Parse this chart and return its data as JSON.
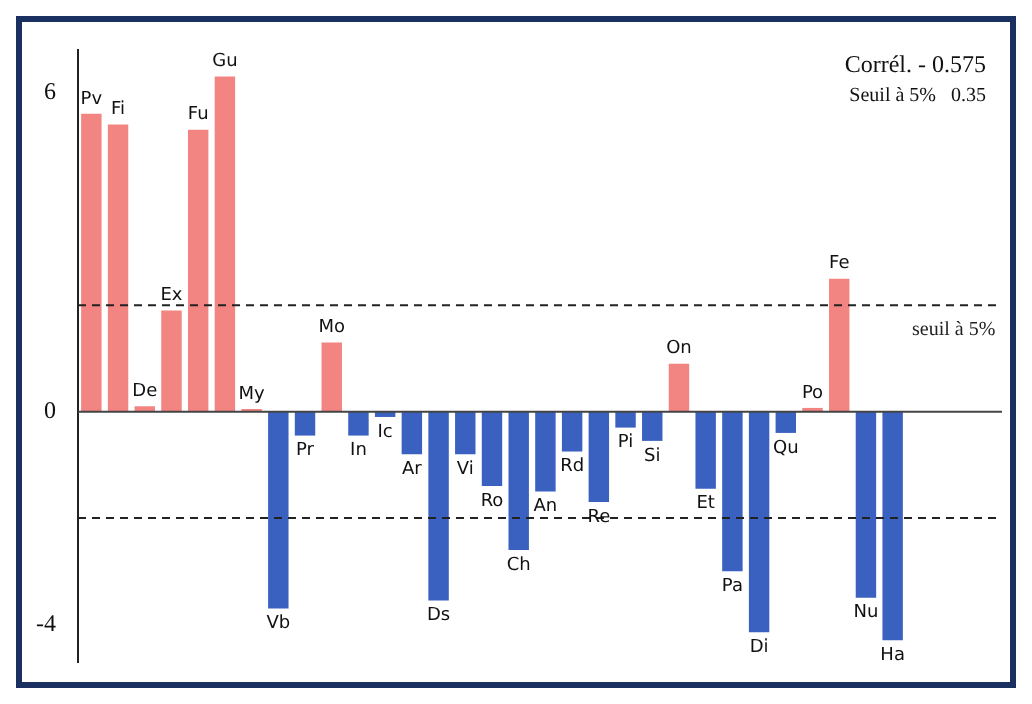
{
  "chart_data": {
    "type": "bar",
    "categories": [
      "Pv",
      "Fi",
      "De",
      "Ex",
      "Fu",
      "Gu",
      "My",
      "Vb",
      "Pr",
      "Mo",
      "In",
      "Ic",
      "Ar",
      "Ds",
      "Vi",
      "Ro",
      "Ch",
      "An",
      "Rd",
      "Re",
      "Pi",
      "Si",
      "On",
      "Et",
      "Pa",
      "Di",
      "Qu",
      "Po",
      "Fe",
      "Nu",
      "Ha"
    ],
    "values": [
      5.6,
      5.4,
      0.1,
      1.9,
      5.3,
      6.3,
      0.05,
      -3.7,
      -0.45,
      1.3,
      -0.45,
      -0.1,
      -0.8,
      -3.55,
      -0.8,
      -1.4,
      -2.6,
      -1.5,
      -0.75,
      -1.7,
      -0.3,
      -0.55,
      0.9,
      -1.45,
      -3.0,
      -4.15,
      -0.4,
      0.07,
      2.5,
      -3.5,
      -4.3
    ],
    "colors": [
      "#f28482",
      "#f28482",
      "#f28482",
      "#f28482",
      "#f28482",
      "#f28482",
      "#f28482",
      "#3a60c0",
      "#3a60c0",
      "#f28482",
      "#3a60c0",
      "#3a60c0",
      "#3a60c0",
      "#3a60c0",
      "#3a60c0",
      "#3a60c0",
      "#3a60c0",
      "#3a60c0",
      "#3a60c0",
      "#3a60c0",
      "#3a60c0",
      "#3a60c0",
      "#f28482",
      "#3a60c0",
      "#3a60c0",
      "#3a60c0",
      "#3a60c0",
      "#f28482",
      "#f28482",
      "#3a60c0",
      "#3a60c0"
    ],
    "ylim": [
      -4.7,
      6.8
    ],
    "yticks": [
      -4,
      0,
      6
    ],
    "grid": false,
    "legend": false,
    "tick_labels": "y",
    "ref_lines": [
      {
        "axis": "y",
        "value": 2,
        "label": "seuil à 5%",
        "line_style": "dashed"
      },
      {
        "axis": "y",
        "value": -2,
        "label": null,
        "line_style": "dashed"
      }
    ],
    "annotations": [
      "Corrél. - 0.575",
      "Seuil à 5%   0.35"
    ]
  }
}
